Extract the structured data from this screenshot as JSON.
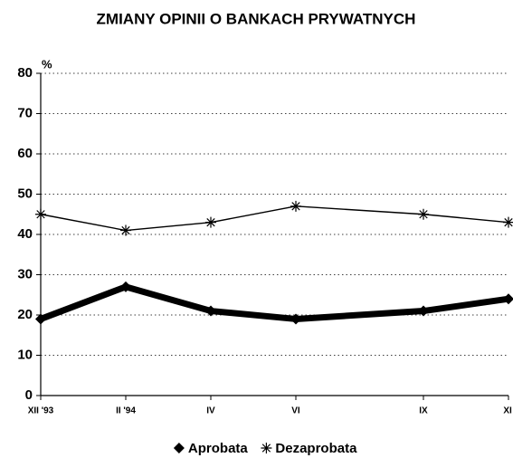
{
  "chart_data": {
    "type": "line",
    "title": "ZMIANY OPINII O BANKACH PRYWATNYCH",
    "y_unit": "%",
    "categories": [
      "XII '93",
      "II '94",
      "IV",
      "VI",
      "IX",
      "XI"
    ],
    "series": [
      {
        "name": "Aprobata",
        "color": "#000000",
        "marker": "diamond",
        "values": [
          19,
          27,
          21,
          19,
          21,
          24
        ]
      },
      {
        "name": "Dezaprobata",
        "color": "#000000",
        "marker": "asterisk",
        "values": [
          45,
          41,
          43,
          47,
          45,
          43
        ]
      }
    ],
    "ylim": [
      0,
      80
    ],
    "yticks": [
      0,
      10,
      20,
      30,
      40,
      50,
      60,
      70,
      80
    ],
    "grid": true,
    "legend": "bottom"
  }
}
